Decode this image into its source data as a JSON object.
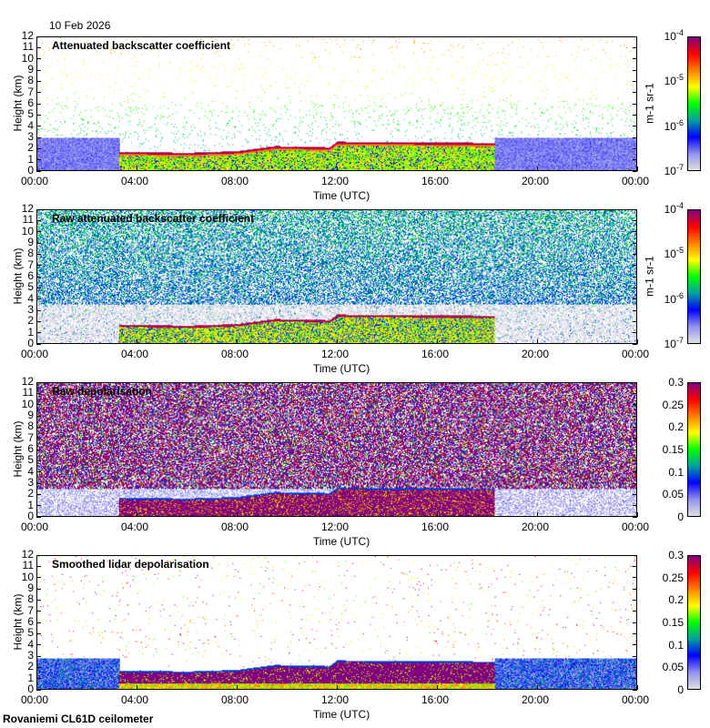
{
  "date": "10 Feb 2026",
  "footer": "Rovaniemi CL61D ceilometer",
  "chart_data": [
    {
      "type": "heatmap",
      "kind": "att",
      "title": "Attenuated backscatter coefficient",
      "xlabel": "Time (UTC)",
      "ylabel": "Height (km)",
      "xlim": [
        0,
        24
      ],
      "ylim": [
        0,
        12
      ],
      "x_ticks": [
        "00:00",
        "04:00",
        "08:00",
        "12:00",
        "16:00",
        "20:00",
        "00:00"
      ],
      "y_ticks": [
        "0",
        "1",
        "2",
        "3",
        "4",
        "5",
        "6",
        "7",
        "8",
        "9",
        "10",
        "11",
        "12"
      ],
      "colorbar": {
        "scale": "log",
        "range": [
          1e-07,
          0.0001
        ],
        "unit": "m-1 sr-1",
        "ticks": [
          {
            "base": "10",
            "exp": "-4"
          },
          {
            "base": "10",
            "exp": "-5"
          },
          {
            "base": "10",
            "exp": "-6"
          },
          {
            "base": "10",
            "exp": "-7"
          }
        ]
      }
    },
    {
      "type": "heatmap",
      "kind": "raw",
      "title": "Raw attenuated backscatter coefficient",
      "xlabel": "Time (UTC)",
      "ylabel": "Height (km)",
      "xlim": [
        0,
        24
      ],
      "ylim": [
        0,
        12
      ],
      "x_ticks": [
        "00:00",
        "04:00",
        "08:00",
        "12:00",
        "16:00",
        "20:00",
        "00:00"
      ],
      "y_ticks": [
        "0",
        "1",
        "2",
        "3",
        "4",
        "5",
        "6",
        "7",
        "8",
        "9",
        "10",
        "11",
        "12"
      ],
      "colorbar": {
        "scale": "log",
        "range": [
          1e-07,
          0.0001
        ],
        "unit": "m-1 sr-1",
        "ticks": [
          {
            "base": "10",
            "exp": "-4"
          },
          {
            "base": "10",
            "exp": "-5"
          },
          {
            "base": "10",
            "exp": "-6"
          },
          {
            "base": "10",
            "exp": "-7"
          }
        ]
      }
    },
    {
      "type": "heatmap",
      "kind": "rawdep",
      "title": "Raw depolarisation",
      "xlabel": "Time (UTC)",
      "ylabel": "Height (km)",
      "xlim": [
        0,
        24
      ],
      "ylim": [
        0,
        12
      ],
      "x_ticks": [
        "00:00",
        "04:00",
        "08:00",
        "12:00",
        "16:00",
        "20:00",
        "00:00"
      ],
      "y_ticks": [
        "0",
        "1",
        "2",
        "3",
        "4",
        "5",
        "6",
        "7",
        "8",
        "9",
        "10",
        "11",
        "12"
      ],
      "colorbar": {
        "scale": "linear",
        "range": [
          0,
          0.3
        ],
        "unit": "",
        "ticks": [
          {
            "base": "0.3"
          },
          {
            "base": "0.25"
          },
          {
            "base": "0.2"
          },
          {
            "base": "0.15"
          },
          {
            "base": "0.1"
          },
          {
            "base": "0.05"
          },
          {
            "base": "0"
          }
        ]
      }
    },
    {
      "type": "heatmap",
      "kind": "smdep",
      "title": "Smoothed lidar depolarisation",
      "xlabel": "Time (UTC)",
      "ylabel": "Height (km)",
      "xlim": [
        0,
        24
      ],
      "ylim": [
        0,
        12
      ],
      "x_ticks": [
        "00:00",
        "04:00",
        "08:00",
        "12:00",
        "16:00",
        "20:00",
        "00:00"
      ],
      "y_ticks": [
        "0",
        "1",
        "2",
        "3",
        "4",
        "5",
        "6",
        "7",
        "8",
        "9",
        "10",
        "11",
        "12"
      ],
      "colorbar": {
        "scale": "linear",
        "range": [
          0,
          0.3
        ],
        "unit": "",
        "ticks": [
          {
            "base": "0.3"
          },
          {
            "base": "0.25"
          },
          {
            "base": "0.2"
          },
          {
            "base": "0.15"
          },
          {
            "base": "0.1"
          },
          {
            "base": "0.05"
          },
          {
            "base": "0"
          }
        ]
      }
    }
  ],
  "cloud_layer_top_km": [
    {
      "t": 3.25,
      "h": 1.7
    },
    {
      "t": 6,
      "h": 1.6
    },
    {
      "t": 8,
      "h": 1.75
    },
    {
      "t": 9.5,
      "h": 2.2
    },
    {
      "t": 11.7,
      "h": 2.1
    },
    {
      "t": 12,
      "h": 2.6
    },
    {
      "t": 18.3,
      "h": 2.5
    }
  ],
  "colormap": [
    "#e0e0e0",
    "#9090f0",
    "#0000ff",
    "#00a0a0",
    "#00ff00",
    "#ffff00",
    "#ff8000",
    "#ff0000",
    "#800080"
  ]
}
